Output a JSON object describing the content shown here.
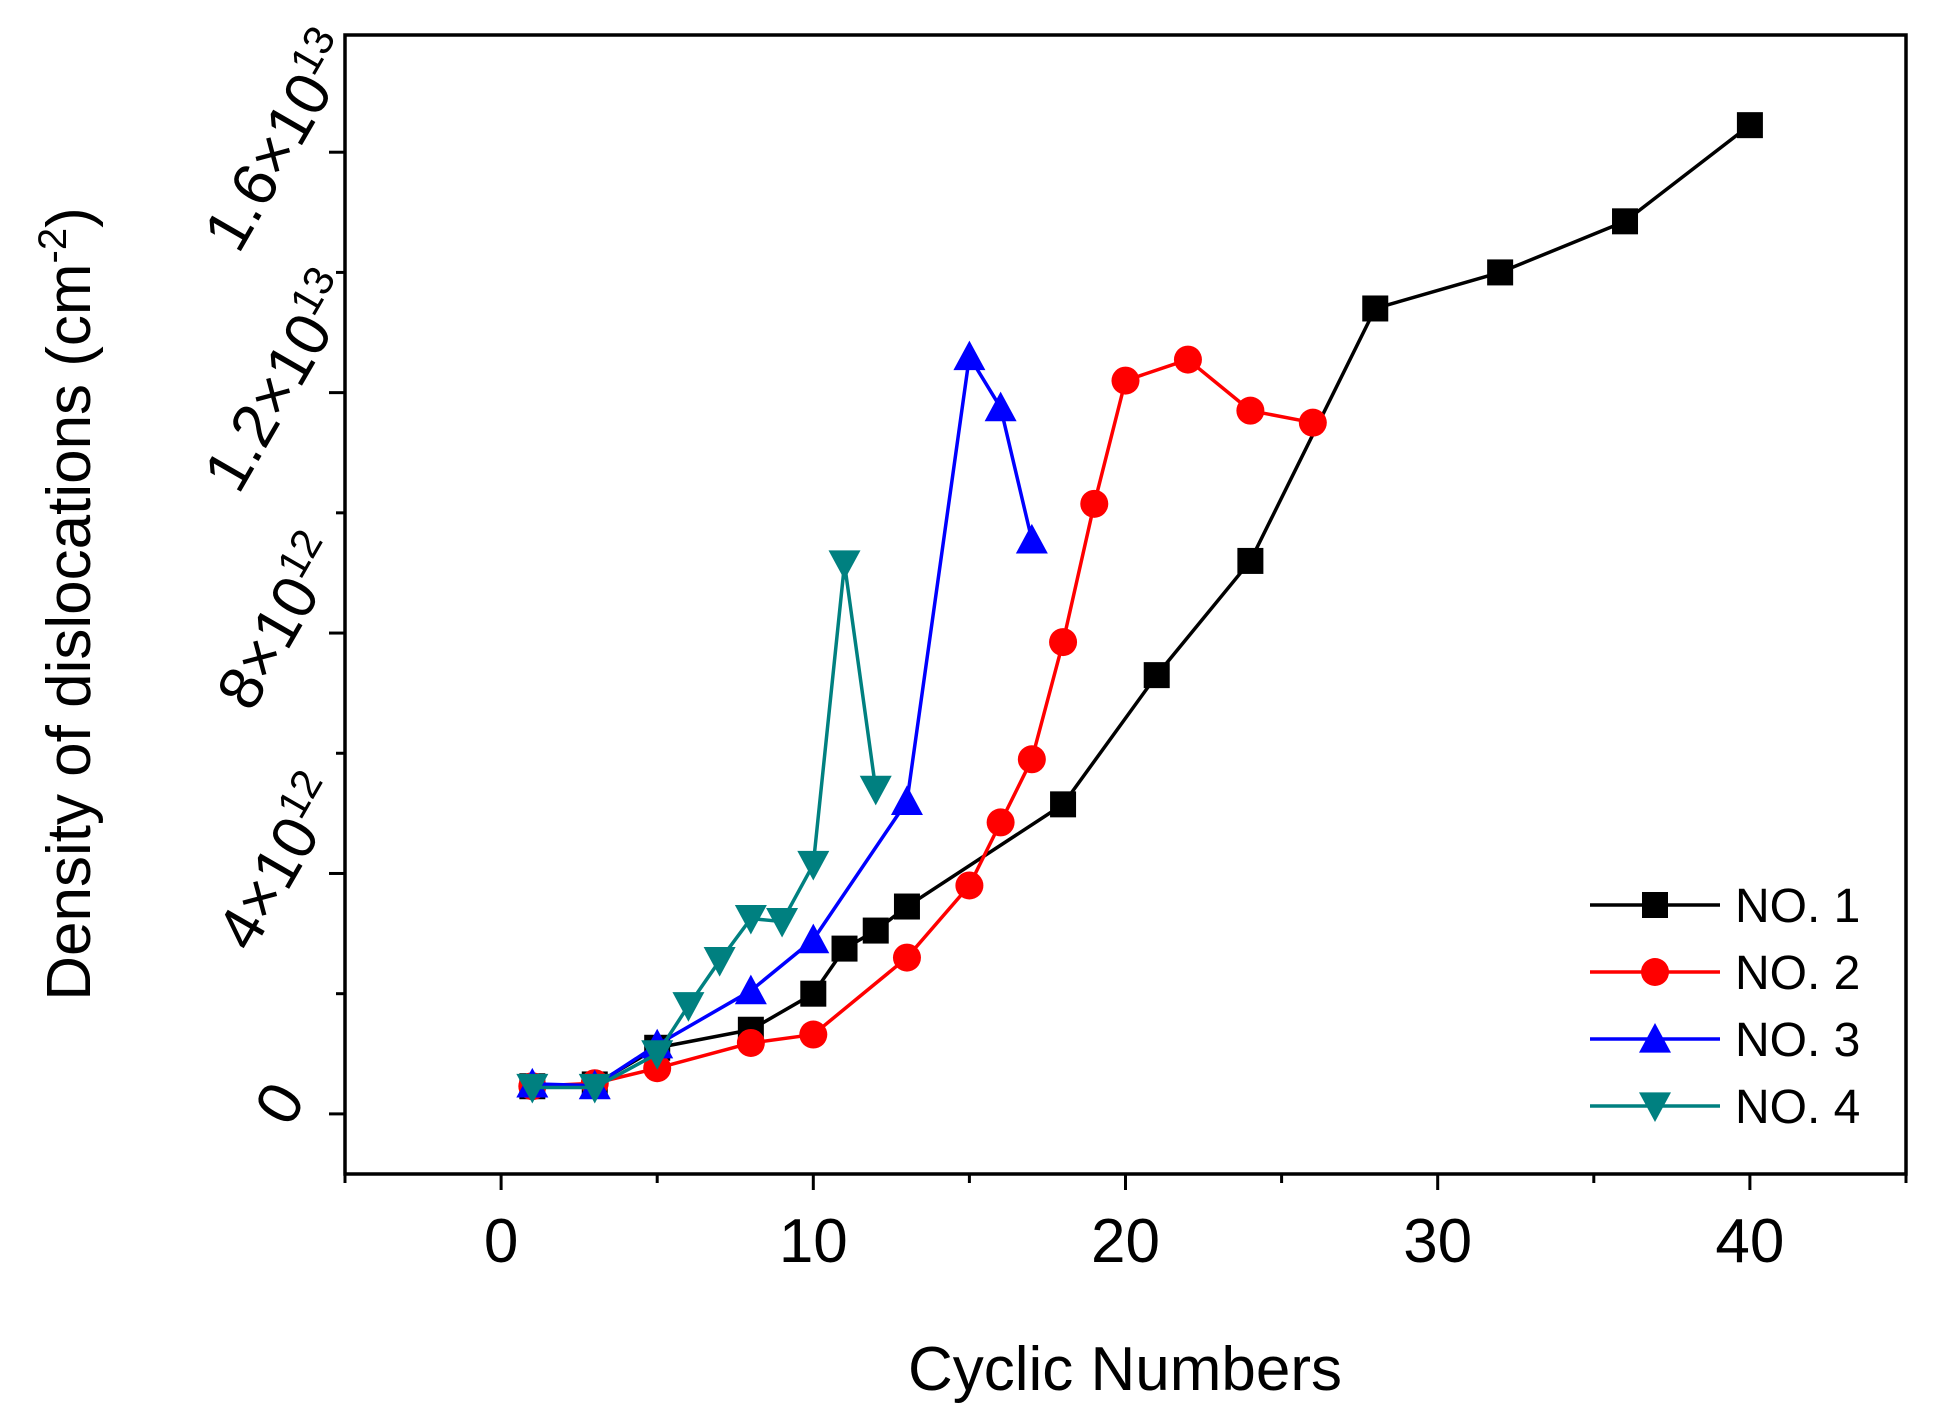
{
  "chart_data": {
    "type": "line",
    "title": "",
    "xlabel": "Cyclic Numbers",
    "ylabel": "Density of dislocations (cm",
    "ylabel_superscript": "-2",
    "ylabel_close": ")",
    "xlim": [
      -5,
      45
    ],
    "ylim": [
      -1000000000000.0,
      17950000000000.0
    ],
    "x_ticks": [
      0,
      10,
      20,
      30,
      40
    ],
    "x_tick_labels": [
      "0",
      "10",
      "20",
      "30",
      "40"
    ],
    "y_ticks": [
      {
        "value": 0,
        "base": "0",
        "exp": ""
      },
      {
        "value": 4000000000000.0,
        "base": "4×10",
        "exp": "12"
      },
      {
        "value": 8000000000000.0,
        "base": "8×10",
        "exp": "12"
      },
      {
        "value": 12000000000000.0,
        "base": "1.2×10",
        "exp": "13"
      },
      {
        "value": 16000000000000.0,
        "base": "1.6×10",
        "exp": "13"
      }
    ],
    "legend_position": "bottom-right",
    "series": [
      {
        "name": "NO. 1",
        "color": "#000000",
        "marker": "square",
        "x": [
          1,
          3,
          5,
          8,
          10,
          11,
          12,
          13,
          18,
          21,
          24,
          28,
          32,
          36,
          40
        ],
        "y": [
          460000000000.0,
          490000000000.0,
          1100000000000.0,
          1400000000000.0,
          2000000000000.0,
          2750000000000.0,
          3050000000000.0,
          3450000000000.0,
          5150000000000.0,
          7300000000000.0,
          9200000000000.0,
          13400000000000.0,
          14000000000000.0,
          14850000000000.0,
          16450000000000.0
        ]
      },
      {
        "name": "NO. 2",
        "color": "#ff0000",
        "marker": "circle",
        "x": [
          1,
          3,
          5,
          8,
          10,
          13,
          15,
          16,
          17,
          18,
          19,
          20,
          22,
          24,
          26
        ],
        "y": [
          460000000000.0,
          510000000000.0,
          760000000000.0,
          1180000000000.0,
          1320000000000.0,
          2600000000000.0,
          3800000000000.0,
          4850000000000.0,
          5900000000000.0,
          7850000000000.0,
          10150000000000.0,
          12200000000000.0,
          12550000000000.0,
          11700000000000.0,
          11500000000000.0
        ]
      },
      {
        "name": "NO. 3",
        "color": "#0000ff",
        "marker": "triangle-up",
        "x": [
          1,
          3,
          5,
          8,
          10,
          13,
          15,
          16,
          17
        ],
        "y": [
          500000000000.0,
          470000000000.0,
          1150000000000.0,
          2050000000000.0,
          2900000000000.0,
          5200000000000.0,
          12600000000000.0,
          11750000000000.0,
          9550000000000.0
        ]
      },
      {
        "name": "NO. 4",
        "color": "#008080",
        "marker": "triangle-down",
        "x": [
          1,
          3,
          5,
          6,
          7,
          8,
          9,
          10,
          11,
          12
        ],
        "y": [
          440000000000.0,
          440000000000.0,
          1000000000000.0,
          1800000000000.0,
          2550000000000.0,
          3250000000000.0,
          3200000000000.0,
          4150000000000.0,
          9150000000000.0,
          5400000000000.0
        ]
      }
    ]
  }
}
